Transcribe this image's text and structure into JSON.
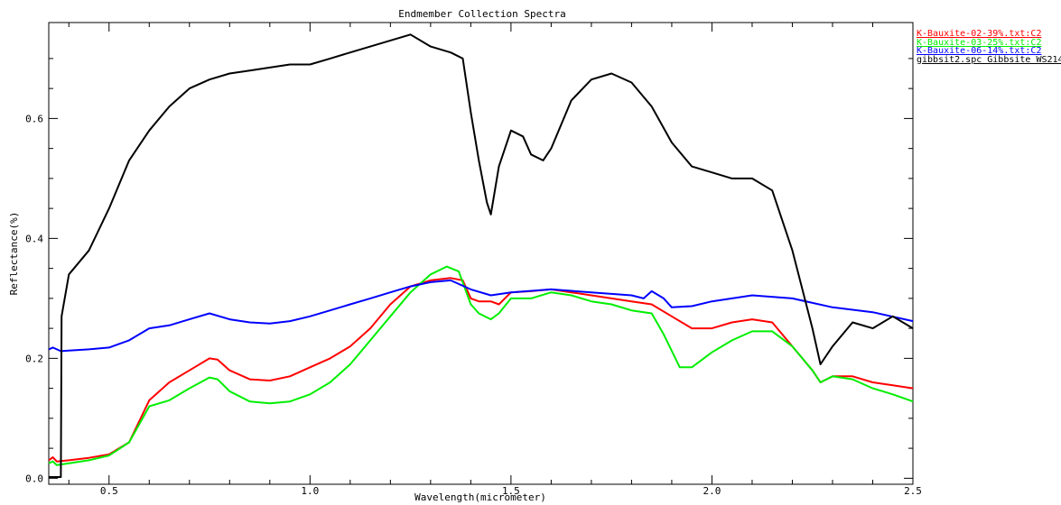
{
  "chart_data": {
    "type": "line",
    "title": "Endmember Collection Spectra",
    "xlabel": "Wavelength(micrometer)",
    "ylabel": "Reflectance(%)",
    "xlim": [
      0.35,
      2.5
    ],
    "ylim": [
      -0.01,
      0.76
    ],
    "x_ticks": [
      {
        "value": 0.5,
        "label": "0.5"
      },
      {
        "value": 1.0,
        "label": "1.0"
      },
      {
        "value": 1.5,
        "label": "1.5"
      },
      {
        "value": 2.0,
        "label": "2.0"
      },
      {
        "value": 2.5,
        "label": "2.5"
      }
    ],
    "y_ticks": [
      {
        "value": 0.0,
        "label": "0.0"
      },
      {
        "value": 0.2,
        "label": "0.2"
      },
      {
        "value": 0.4,
        "label": "0.4"
      },
      {
        "value": 0.6,
        "label": "0.6"
      }
    ],
    "grid": false,
    "legend_position": "top-right outside",
    "series": [
      {
        "name": "K-Bauxite-02-39%.txt:C2",
        "color": "#ff0000",
        "x": [
          0.35,
          0.36,
          0.37,
          0.4,
          0.45,
          0.5,
          0.55,
          0.6,
          0.65,
          0.7,
          0.75,
          0.77,
          0.8,
          0.85,
          0.9,
          0.95,
          1.0,
          1.05,
          1.1,
          1.15,
          1.2,
          1.25,
          1.3,
          1.35,
          1.38,
          1.4,
          1.42,
          1.45,
          1.47,
          1.5,
          1.55,
          1.6,
          1.65,
          1.7,
          1.75,
          1.8,
          1.85,
          1.9,
          1.95,
          2.0,
          2.05,
          2.1,
          2.15,
          2.2,
          2.25,
          2.27,
          2.3,
          2.35,
          2.4,
          2.45,
          2.5
        ],
        "y": [
          0.03,
          0.035,
          0.028,
          0.03,
          0.034,
          0.04,
          0.06,
          0.13,
          0.16,
          0.18,
          0.2,
          0.198,
          0.18,
          0.165,
          0.163,
          0.17,
          0.185,
          0.2,
          0.22,
          0.25,
          0.29,
          0.32,
          0.33,
          0.334,
          0.33,
          0.3,
          0.295,
          0.295,
          0.29,
          0.31,
          0.312,
          0.315,
          0.31,
          0.305,
          0.3,
          0.295,
          0.29,
          0.27,
          0.25,
          0.25,
          0.26,
          0.265,
          0.26,
          0.22,
          0.18,
          0.16,
          0.17,
          0.17,
          0.16,
          0.155,
          0.15
        ]
      },
      {
        "name": "K-Bauxite-03-25%.txt:C2",
        "color": "#00ee00",
        "x": [
          0.35,
          0.36,
          0.37,
          0.4,
          0.45,
          0.5,
          0.55,
          0.6,
          0.65,
          0.7,
          0.75,
          0.77,
          0.8,
          0.85,
          0.9,
          0.95,
          1.0,
          1.05,
          1.1,
          1.15,
          1.2,
          1.25,
          1.3,
          1.34,
          1.37,
          1.4,
          1.42,
          1.45,
          1.47,
          1.5,
          1.55,
          1.6,
          1.65,
          1.7,
          1.75,
          1.8,
          1.85,
          1.88,
          1.92,
          1.95,
          2.0,
          2.05,
          2.1,
          2.15,
          2.2,
          2.25,
          2.27,
          2.3,
          2.35,
          2.4,
          2.45,
          2.5
        ],
        "y": [
          0.025,
          0.028,
          0.022,
          0.025,
          0.03,
          0.038,
          0.06,
          0.12,
          0.13,
          0.15,
          0.168,
          0.165,
          0.145,
          0.128,
          0.125,
          0.128,
          0.14,
          0.16,
          0.19,
          0.23,
          0.27,
          0.31,
          0.34,
          0.353,
          0.345,
          0.29,
          0.275,
          0.265,
          0.275,
          0.3,
          0.3,
          0.31,
          0.305,
          0.295,
          0.29,
          0.28,
          0.275,
          0.24,
          0.185,
          0.185,
          0.21,
          0.23,
          0.245,
          0.245,
          0.22,
          0.18,
          0.16,
          0.17,
          0.165,
          0.15,
          0.14,
          0.128
        ]
      },
      {
        "name": "K-Bauxite-06-14%.txt:C2",
        "color": "#0000ff",
        "x": [
          0.35,
          0.36,
          0.38,
          0.4,
          0.45,
          0.5,
          0.55,
          0.6,
          0.65,
          0.7,
          0.75,
          0.8,
          0.85,
          0.9,
          0.95,
          1.0,
          1.05,
          1.1,
          1.15,
          1.2,
          1.25,
          1.3,
          1.35,
          1.4,
          1.45,
          1.5,
          1.6,
          1.7,
          1.8,
          1.83,
          1.85,
          1.88,
          1.9,
          1.95,
          2.0,
          2.1,
          2.2,
          2.3,
          2.4,
          2.5
        ],
        "y": [
          0.215,
          0.218,
          0.212,
          0.213,
          0.215,
          0.218,
          0.23,
          0.25,
          0.255,
          0.265,
          0.275,
          0.265,
          0.26,
          0.258,
          0.262,
          0.27,
          0.28,
          0.29,
          0.3,
          0.31,
          0.32,
          0.327,
          0.33,
          0.315,
          0.305,
          0.31,
          0.315,
          0.31,
          0.305,
          0.3,
          0.312,
          0.3,
          0.285,
          0.287,
          0.295,
          0.305,
          0.3,
          0.285,
          0.277,
          0.262
        ]
      },
      {
        "name": "gibbsit2.spc Gibbsite WS214",
        "color": "#000000",
        "x": [
          0.35,
          0.365,
          0.38,
          0.382,
          0.4,
          0.45,
          0.5,
          0.55,
          0.6,
          0.65,
          0.7,
          0.75,
          0.8,
          0.85,
          0.9,
          0.95,
          1.0,
          1.05,
          1.1,
          1.15,
          1.2,
          1.25,
          1.3,
          1.35,
          1.38,
          1.4,
          1.42,
          1.44,
          1.45,
          1.47,
          1.5,
          1.53,
          1.55,
          1.58,
          1.6,
          1.65,
          1.7,
          1.75,
          1.8,
          1.85,
          1.9,
          1.95,
          2.0,
          2.05,
          2.1,
          2.15,
          2.2,
          2.25,
          2.27,
          2.3,
          2.35,
          2.4,
          2.45,
          2.5
        ],
        "y": [
          0.002,
          0.002,
          0.002,
          0.27,
          0.34,
          0.38,
          0.45,
          0.53,
          0.58,
          0.62,
          0.65,
          0.665,
          0.675,
          0.68,
          0.685,
          0.69,
          0.69,
          0.7,
          0.71,
          0.72,
          0.73,
          0.74,
          0.72,
          0.71,
          0.7,
          0.61,
          0.53,
          0.46,
          0.44,
          0.52,
          0.58,
          0.57,
          0.54,
          0.53,
          0.55,
          0.63,
          0.665,
          0.675,
          0.66,
          0.62,
          0.56,
          0.52,
          0.51,
          0.5,
          0.5,
          0.48,
          0.38,
          0.25,
          0.19,
          0.22,
          0.26,
          0.25,
          0.27,
          0.25
        ]
      }
    ]
  }
}
